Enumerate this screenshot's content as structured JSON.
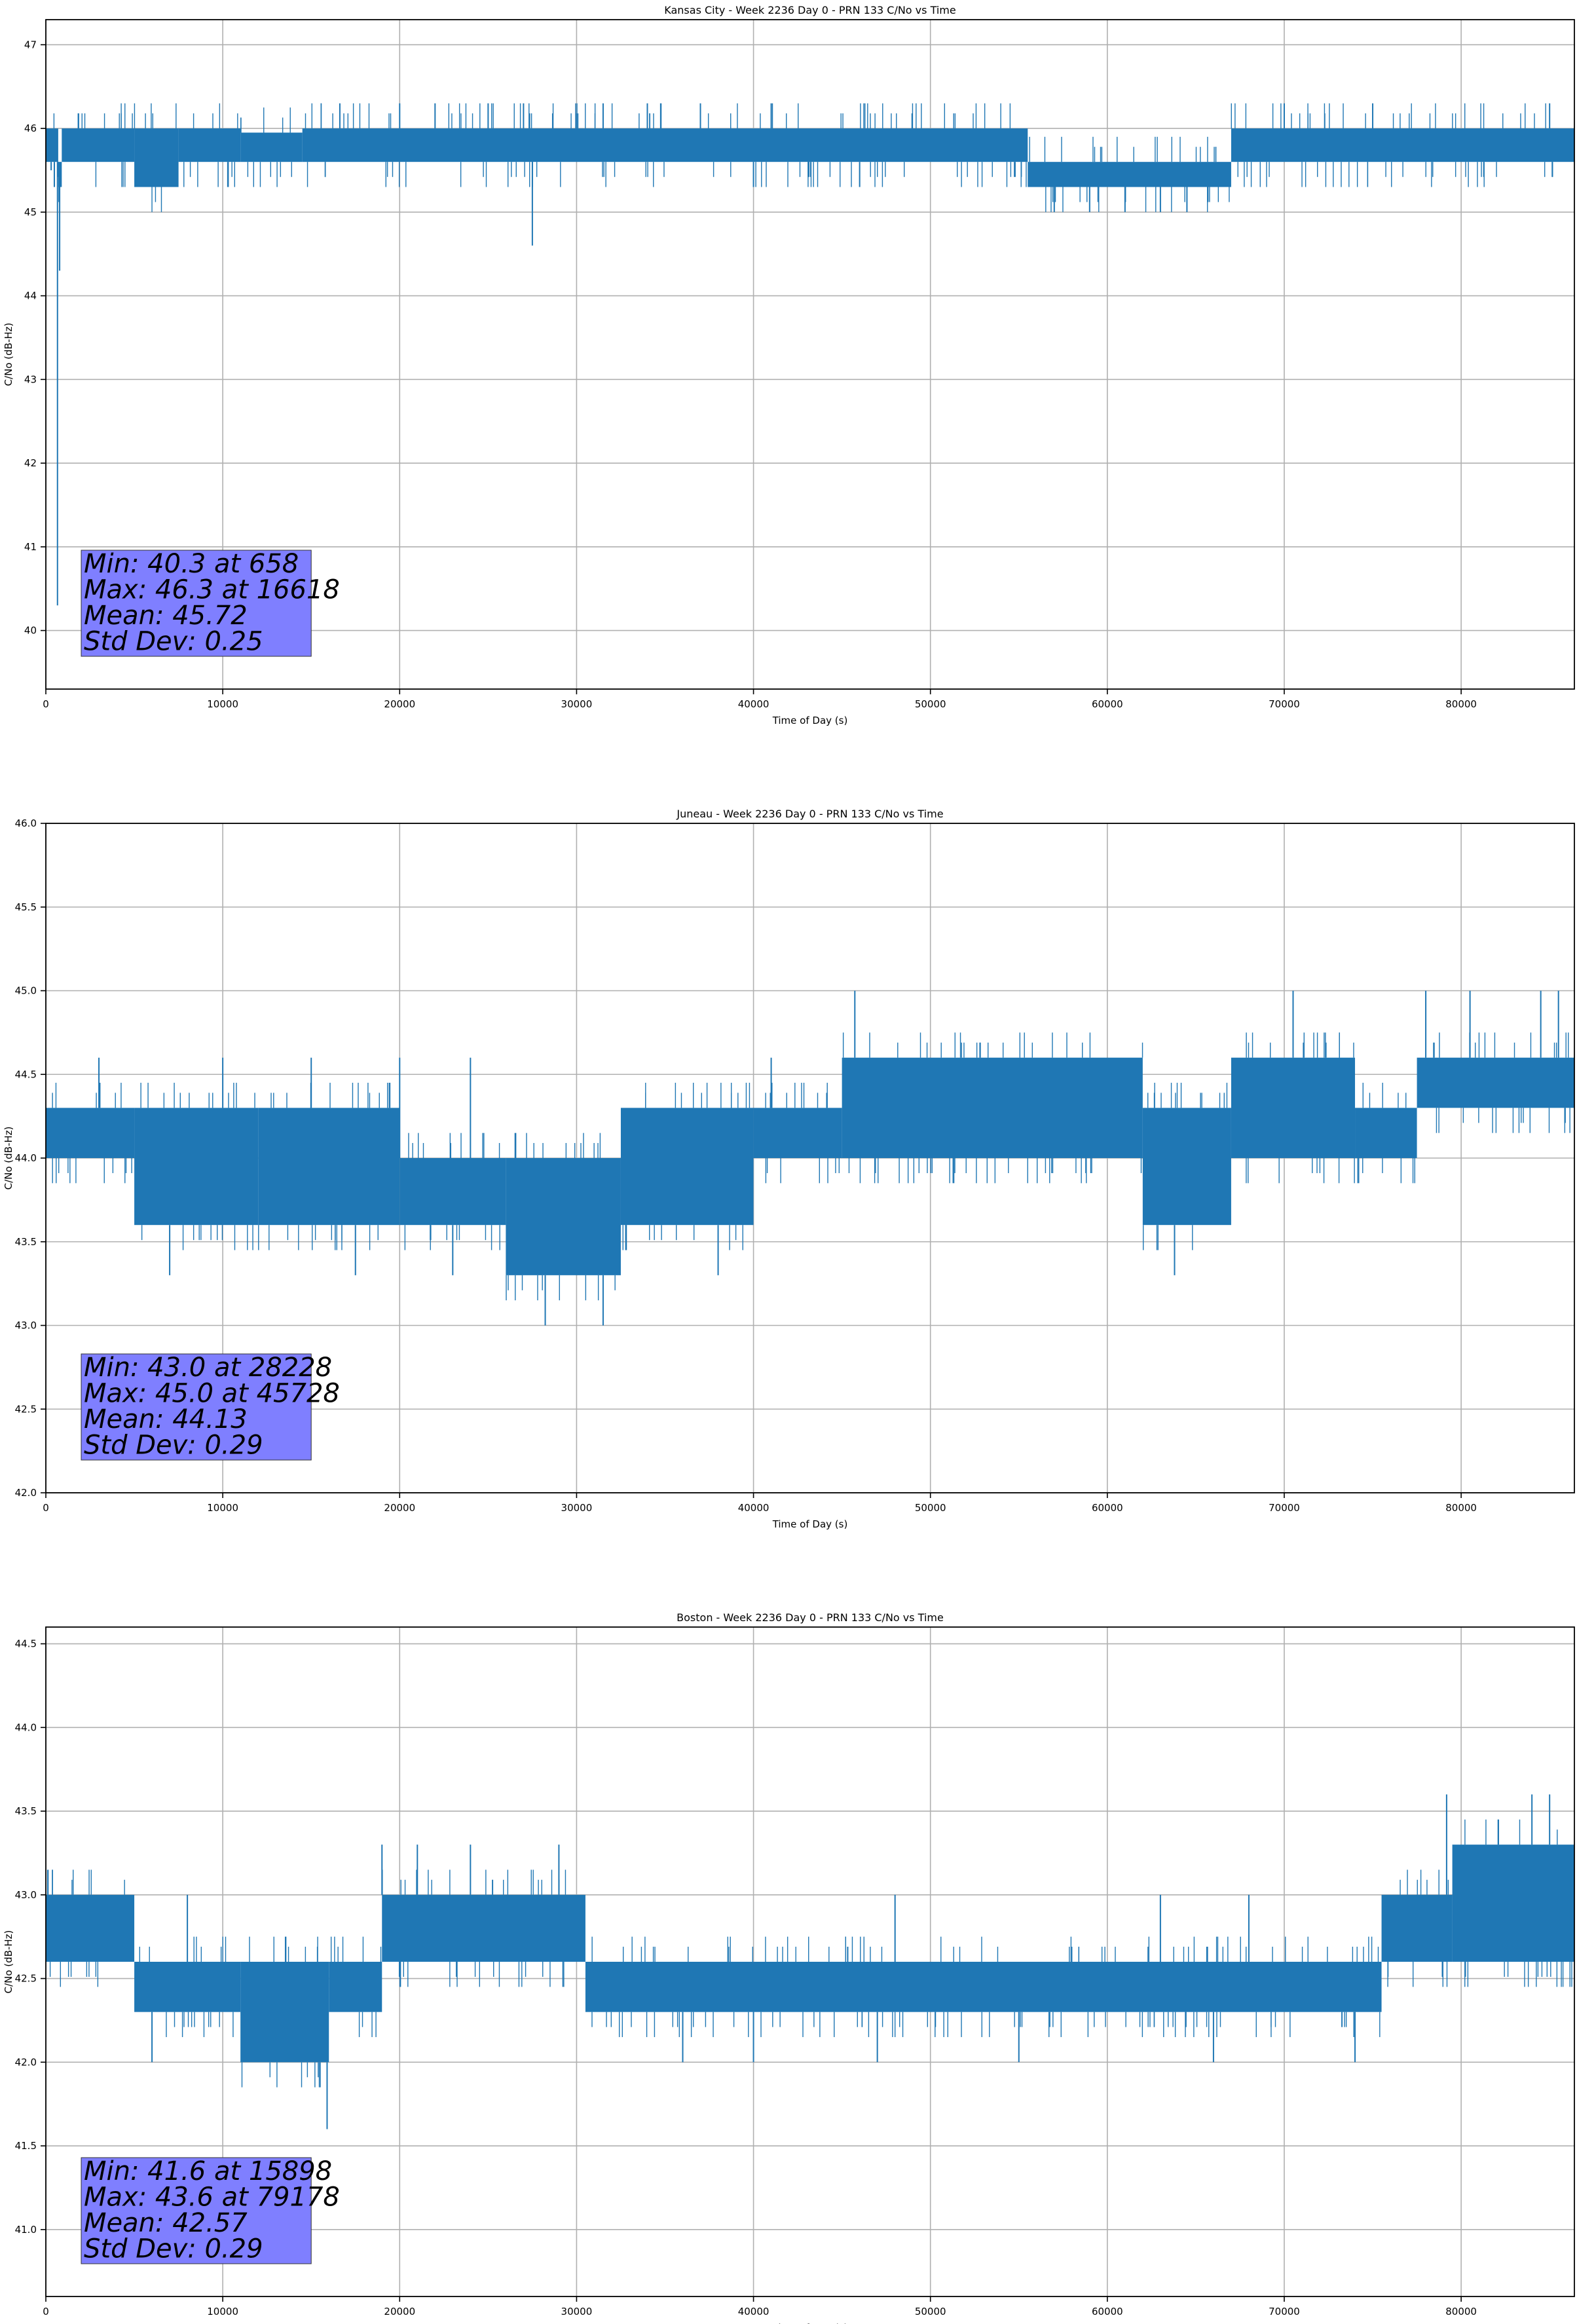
{
  "chart_data": [
    {
      "type": "line",
      "title": "Kansas City - Week 2236 Day 0 - PRN 133 C/No vs Time",
      "xlabel": "Time of Day (s)",
      "ylabel": "C/No (dB-Hz)",
      "xlim": [
        0,
        86400
      ],
      "ylim": [
        39.3,
        47.3
      ],
      "xticks": [
        0,
        10000,
        20000,
        30000,
        40000,
        50000,
        60000,
        70000,
        80000
      ],
      "yticks": [
        40,
        41,
        42,
        43,
        44,
        45,
        46,
        47
      ],
      "grid": true,
      "color": "#1f77b4",
      "stats_box": {
        "color": "#7f7fff",
        "lines": [
          "Min: 40.3 at 658",
          "Max: 46.3 at 16618",
          "Mean: 45.72",
          "Std Dev: 0.25"
        ]
      },
      "series": [
        {
          "band_segments": [
            [
              0,
              700,
              45.6,
              46.0
            ],
            [
              700,
              900,
              45.3,
              45.6
            ],
            [
              900,
              5000,
              45.6,
              46.0
            ],
            [
              5000,
              7500,
              45.3,
              46.0
            ],
            [
              7500,
              11000,
              45.6,
              46.0
            ],
            [
              11000,
              14500,
              45.6,
              45.95
            ],
            [
              14500,
              55500,
              45.6,
              46.0
            ],
            [
              55500,
              67000,
              45.3,
              45.6
            ],
            [
              67000,
              86400,
              45.6,
              46.0
            ]
          ],
          "dips": [
            [
              658,
              40.3
            ],
            [
              300,
              45.5
            ],
            [
              480,
              45.3
            ],
            [
              780,
              44.3
            ],
            [
              27500,
              44.6
            ],
            [
              40000,
              45.3
            ],
            [
              46000,
              45.3
            ],
            [
              57000,
              45.0
            ],
            [
              59000,
              45.0
            ],
            [
              61000,
              45.0
            ],
            [
              63000,
              45.0
            ],
            [
              64500,
              45.0
            ]
          ],
          "spikes": [
            [
              16618,
              46.3
            ],
            [
              20000,
              46.3
            ],
            [
              22000,
              46.3
            ],
            [
              25000,
              46.3
            ],
            [
              27000,
              46.3
            ],
            [
              31500,
              46.3
            ],
            [
              34000,
              46.3
            ],
            [
              37000,
              46.3
            ],
            [
              41000,
              46.3
            ],
            [
              70000,
              46.3
            ],
            [
              75000,
              46.3
            ],
            [
              85000,
              46.3
            ]
          ]
        }
      ]
    },
    {
      "type": "line",
      "title": "Juneau - Week 2236 Day 0 - PRN 133 C/No vs Time",
      "xlabel": "Time of Day (s)",
      "ylabel": "C/No (dB-Hz)",
      "xlim": [
        0,
        86400
      ],
      "ylim": [
        42.0,
        46.0
      ],
      "xticks": [
        0,
        10000,
        20000,
        30000,
        40000,
        50000,
        60000,
        70000,
        80000
      ],
      "yticks": [
        42.0,
        42.5,
        43.0,
        43.5,
        44.0,
        44.5,
        45.0,
        45.5,
        46.0
      ],
      "grid": true,
      "color": "#1f77b4",
      "stats_box": {
        "color": "#7f7fff",
        "lines": [
          "Min: 43.0 at 28228",
          "Max: 45.0 at 45728",
          "Mean: 44.13",
          "Std Dev: 0.29"
        ]
      },
      "series": [
        {
          "band_segments": [
            [
              0,
              5000,
              44.0,
              44.3
            ],
            [
              5000,
              12000,
              43.6,
              44.3
            ],
            [
              12000,
              20000,
              43.6,
              44.3
            ],
            [
              20000,
              26000,
              43.6,
              44.0
            ],
            [
              26000,
              32500,
              43.3,
              44.0
            ],
            [
              32500,
              40000,
              43.6,
              44.3
            ],
            [
              40000,
              45000,
              44.0,
              44.3
            ],
            [
              45000,
              62000,
              44.0,
              44.6
            ],
            [
              62000,
              67000,
              43.6,
              44.3
            ],
            [
              67000,
              74000,
              44.0,
              44.6
            ],
            [
              74000,
              77500,
              44.0,
              44.3
            ],
            [
              77500,
              86400,
              44.3,
              44.6
            ]
          ],
          "dips": [
            [
              28228,
              43.0
            ],
            [
              31500,
              43.0
            ],
            [
              7000,
              43.3
            ],
            [
              17500,
              43.3
            ],
            [
              63800,
              43.3
            ],
            [
              23000,
              43.3
            ],
            [
              38000,
              43.3
            ]
          ],
          "spikes": [
            [
              45728,
              45.0
            ],
            [
              70500,
              45.0
            ],
            [
              78000,
              45.0
            ],
            [
              80500,
              45.0
            ],
            [
              84500,
              45.0
            ],
            [
              85500,
              45.0
            ],
            [
              3000,
              44.6
            ],
            [
              10000,
              44.6
            ],
            [
              15000,
              44.6
            ],
            [
              20000,
              44.6
            ],
            [
              24000,
              44.6
            ],
            [
              41000,
              44.6
            ]
          ]
        }
      ]
    },
    {
      "type": "line",
      "title": "Boston - Week 2236 Day 0 - PRN 133 C/No vs Time",
      "xlabel": "Time of Day (s)",
      "ylabel": "C/No (dB-Hz)",
      "xlim": [
        0,
        86400
      ],
      "ylim": [
        40.6,
        44.6
      ],
      "xticks": [
        0,
        10000,
        20000,
        30000,
        40000,
        50000,
        60000,
        70000,
        80000
      ],
      "yticks": [
        41.0,
        41.5,
        42.0,
        42.5,
        43.0,
        43.5,
        44.0,
        44.5
      ],
      "grid": true,
      "color": "#1f77b4",
      "stats_box": {
        "color": "#7f7fff",
        "lines": [
          "Min: 41.6 at 15898",
          "Max: 43.6 at 79178",
          "Mean: 42.57",
          "Std Dev: 0.29"
        ]
      },
      "series": [
        {
          "band_segments": [
            [
              0,
              5000,
              42.6,
              43.0
            ],
            [
              5000,
              11000,
              42.3,
              42.6
            ],
            [
              11000,
              16000,
              42.0,
              42.6
            ],
            [
              16000,
              19000,
              42.3,
              42.6
            ],
            [
              19000,
              30500,
              42.6,
              43.0
            ],
            [
              30500,
              75500,
              42.3,
              42.6
            ],
            [
              75500,
              79500,
              42.6,
              43.0
            ],
            [
              79500,
              86400,
              42.6,
              43.3
            ]
          ],
          "dips": [
            [
              15898,
              41.6
            ],
            [
              6000,
              42.0
            ],
            [
              36000,
              42.0
            ],
            [
              40000,
              42.0
            ],
            [
              47000,
              42.0
            ],
            [
              55000,
              42.0
            ],
            [
              66000,
              42.0
            ],
            [
              74000,
              42.0
            ]
          ],
          "spikes": [
            [
              79178,
              43.6
            ],
            [
              84000,
              43.6
            ],
            [
              85000,
              43.6
            ],
            [
              19000,
              43.3
            ],
            [
              21000,
              43.3
            ],
            [
              24000,
              43.3
            ],
            [
              29000,
              43.3
            ],
            [
              8000,
              43.0
            ],
            [
              48000,
              43.0
            ],
            [
              63000,
              43.0
            ],
            [
              68000,
              43.0
            ]
          ]
        }
      ]
    }
  ]
}
